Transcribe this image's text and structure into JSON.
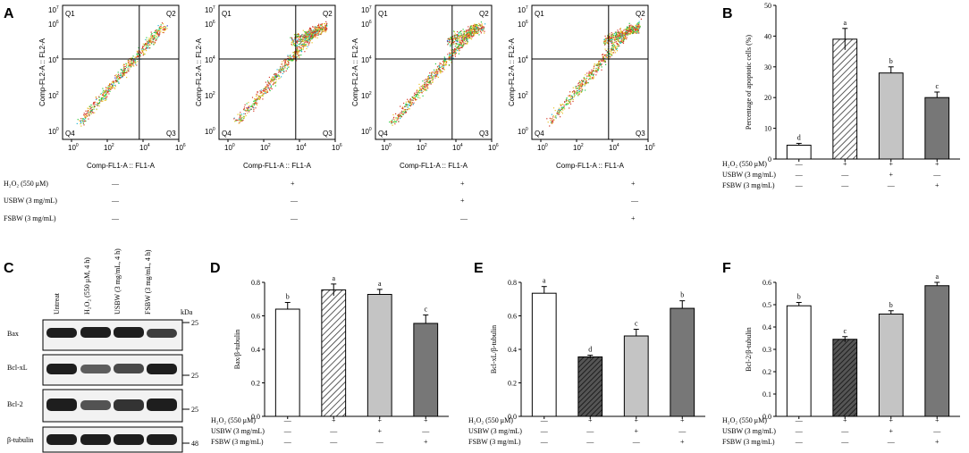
{
  "panel_labels": {
    "A": "A",
    "B": "B",
    "C": "C",
    "D": "D",
    "E": "E",
    "F": "F"
  },
  "flow": {
    "quadrants": [
      "Q1",
      "Q2",
      "Q3",
      "Q4"
    ],
    "xlabel": "Comp-FL1-A :: FL1-A",
    "ylabel": "Comp-FL2-A :: FL2-A",
    "ticks": [
      "10^0",
      "10^2",
      "10^4",
      "10^6",
      "10^7"
    ],
    "treatments": [
      {
        "label": "H₂O₂ (550 μM)",
        "values": [
          "—",
          "+",
          "+",
          "+"
        ]
      },
      {
        "label": "USBW (3 mg/mL)",
        "values": [
          "—",
          "—",
          "+",
          "—"
        ]
      },
      {
        "label": "FSBW (3 mg/mL)",
        "values": [
          "—",
          "—",
          "—",
          "+"
        ]
      }
    ]
  },
  "western": {
    "lanes": [
      "Untreat",
      "H₂O₂ (550 μM, 4 h)",
      "USBW (3 mg/mL, 4 h)",
      "FSBW (3 mg/mL, 4 h)"
    ],
    "kda_label": "kDa",
    "bands": [
      {
        "name": "Bax",
        "marker": "25"
      },
      {
        "name": "Bcl-xL",
        "marker": "25"
      },
      {
        "name": "Bcl-2",
        "marker": "25"
      },
      {
        "name": "β-tubulin",
        "marker": "48"
      }
    ]
  },
  "chart_data": [
    {
      "id": "B",
      "type": "bar",
      "title": "",
      "ylabel": "Percentage of apoptotic cells (%)",
      "ylim": [
        0,
        50
      ],
      "yticks": [
        0,
        10,
        20,
        30,
        40,
        50
      ],
      "values": [
        4.5,
        39,
        28,
        20
      ],
      "errors": [
        0.6,
        3.5,
        2,
        1.8
      ],
      "letters": [
        "d",
        "a",
        "b",
        "c"
      ],
      "treatments": [
        {
          "label": "H₂O₂ (550 μM)",
          "values": [
            "—",
            "+",
            "+",
            "+"
          ]
        },
        {
          "label": "USBW (3 mg/mL)",
          "values": [
            "—",
            "—",
            "+",
            "—"
          ]
        },
        {
          "label": "FSBW (3 mg/mL)",
          "values": [
            "—",
            "—",
            "—",
            "+"
          ]
        }
      ]
    },
    {
      "id": "D",
      "type": "bar",
      "ylabel": "Bax/β-tubulin",
      "ylim": [
        0,
        0.8
      ],
      "yticks": [
        "0.0",
        "0.2",
        "0.4",
        "0.6",
        "0.8"
      ],
      "values": [
        0.64,
        0.755,
        0.728,
        0.555
      ],
      "errors": [
        0.04,
        0.035,
        0.03,
        0.05
      ],
      "letters": [
        "b",
        "a",
        "a",
        "c"
      ],
      "treatments": [
        {
          "label": "H₂O₂ (550 μM)",
          "values": [
            "—",
            "+",
            "+",
            "+"
          ]
        },
        {
          "label": "USBW (3 mg/mL)",
          "values": [
            "—",
            "—",
            "+",
            "—"
          ]
        },
        {
          "label": "FSBW (3 mg/mL)",
          "values": [
            "—",
            "—",
            "—",
            "+"
          ]
        }
      ]
    },
    {
      "id": "E",
      "type": "bar",
      "ylabel": "Bcl-xL/β-tubulin",
      "ylim": [
        0,
        0.8
      ],
      "yticks": [
        "0.0",
        "0.2",
        "0.4",
        "0.6",
        "0.8"
      ],
      "values": [
        0.735,
        0.355,
        0.48,
        0.645
      ],
      "errors": [
        0.04,
        0.01,
        0.04,
        0.045
      ],
      "letters": [
        "a",
        "d",
        "c",
        "b"
      ],
      "treatments": [
        {
          "label": "H₂O₂ (550 μM)",
          "values": [
            "—",
            "+",
            "+",
            "+"
          ]
        },
        {
          "label": "USBW (3 mg/mL)",
          "values": [
            "—",
            "—",
            "+",
            "—"
          ]
        },
        {
          "label": "FSBW (3 mg/mL)",
          "values": [
            "—",
            "—",
            "—",
            "+"
          ]
        }
      ]
    },
    {
      "id": "F",
      "type": "bar",
      "ylabel": "Bcl-2/β-tubulin",
      "ylim": [
        0,
        0.6
      ],
      "yticks": [
        "0.0",
        "0.1",
        "0.2",
        "0.3",
        "0.4",
        "0.5",
        "0.6"
      ],
      "values": [
        0.495,
        0.345,
        0.458,
        0.585
      ],
      "errors": [
        0.015,
        0.012,
        0.015,
        0.015
      ],
      "letters": [
        "b",
        "c",
        "b",
        "a"
      ],
      "treatments": [
        {
          "label": "H₂O₂ (550 μM)",
          "values": [
            "—",
            "+",
            "+",
            "+"
          ]
        },
        {
          "label": "USBW (3 mg/mL)",
          "values": [
            "—",
            "—",
            "+",
            "—"
          ]
        },
        {
          "label": "FSBW (3 mg/mL)",
          "values": [
            "—",
            "—",
            "—",
            "+"
          ]
        }
      ]
    }
  ],
  "colors": {
    "bar1": "#ffffff",
    "bar2": "#ffffff",
    "bar3": "#c4c4c4",
    "bar4": "#777777",
    "hatch": "#333333"
  }
}
